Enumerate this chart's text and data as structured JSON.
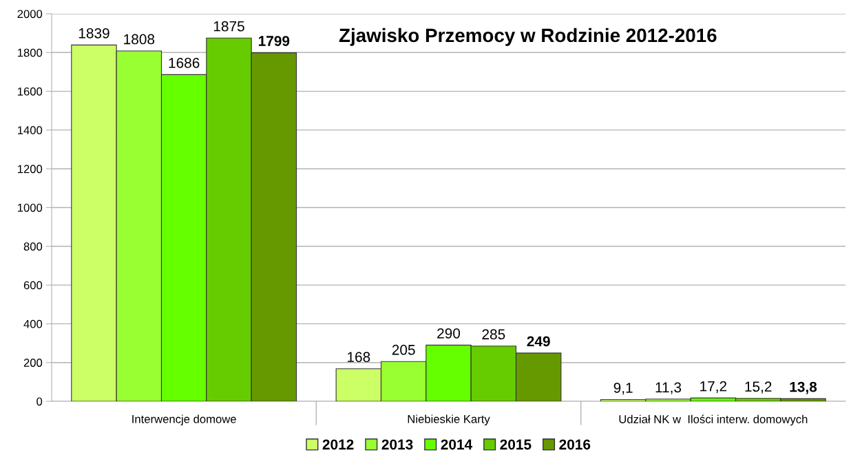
{
  "chart_data": {
    "type": "bar",
    "title": "Zjawisko Przemocy w Rodzinie 2012-2016",
    "categories": [
      "Interwencje domowe",
      "Niebieskie Karty",
      "Udział NK w  Ilości interw. domowych"
    ],
    "series": [
      {
        "name": "2012",
        "color": "#ccff66",
        "values": [
          1839,
          168,
          9.1
        ],
        "value_labels": [
          "1839",
          "168",
          "9,1"
        ]
      },
      {
        "name": "2013",
        "color": "#99ff33",
        "values": [
          1808,
          205,
          11.3
        ],
        "value_labels": [
          "1808",
          "205",
          "11,3"
        ]
      },
      {
        "name": "2014",
        "color": "#66ff00",
        "values": [
          1686,
          290,
          17.2
        ],
        "value_labels": [
          "1686",
          "290",
          "17,2"
        ]
      },
      {
        "name": "2015",
        "color": "#66cc00",
        "values": [
          1875,
          285,
          15.2
        ],
        "value_labels": [
          "1875",
          "285",
          "15,2"
        ]
      },
      {
        "name": "2016",
        "color": "#669900",
        "values": [
          1799,
          249,
          13.8
        ],
        "value_labels": [
          "1799",
          "249",
          "13,8"
        ]
      }
    ],
    "ylim": [
      0,
      2000
    ],
    "yticks": [
      0,
      200,
      400,
      600,
      800,
      1000,
      1200,
      1400,
      1600,
      1800,
      2000
    ],
    "grid": "y",
    "legend": "bottom"
  }
}
